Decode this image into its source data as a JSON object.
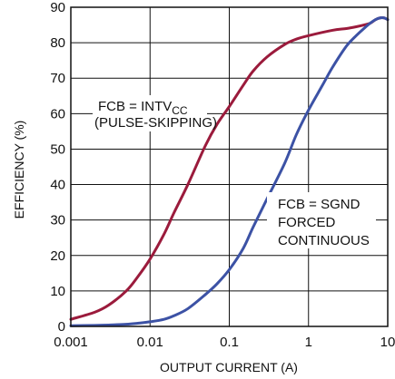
{
  "chart_data": {
    "type": "line",
    "xscale": "log",
    "xlim": [
      0.001,
      10
    ],
    "ylim": [
      0,
      90
    ],
    "xticks": [
      0.001,
      0.01,
      0.1,
      1,
      10
    ],
    "xtick_labels": [
      "0.001",
      "0.01",
      "0.1",
      "1",
      "10"
    ],
    "yticks": [
      0,
      10,
      20,
      30,
      40,
      50,
      60,
      70,
      80,
      90
    ],
    "ytick_labels": [
      "0",
      "10",
      "20",
      "30",
      "40",
      "50",
      "60",
      "70",
      "80",
      "90"
    ],
    "xlabel": "OUTPUT CURRENT (A)",
    "ylabel": "EFFICIENCY (%)",
    "grid": true,
    "series": [
      {
        "name": "FCB = INTVCC (PULSE-SKIPPING)",
        "color": "#9b1b3c",
        "x": [
          0.001,
          0.002,
          0.003,
          0.005,
          0.007,
          0.01,
          0.015,
          0.02,
          0.03,
          0.05,
          0.07,
          0.1,
          0.15,
          0.2,
          0.3,
          0.5,
          0.7,
          1,
          2,
          3,
          4,
          5,
          6,
          7,
          8,
          9,
          10
        ],
        "y": [
          2,
          4,
          6,
          10,
          14,
          19,
          26,
          32,
          40,
          51,
          57,
          62,
          68,
          72,
          76,
          79.5,
          81,
          82,
          83.5,
          84,
          84.5,
          85,
          85.5,
          86.5,
          87,
          87,
          86.5
        ]
      },
      {
        "name": "FCB = SGND FORCED CONTINUOUS",
        "color": "#3c52a5",
        "x": [
          0.001,
          0.002,
          0.003,
          0.005,
          0.007,
          0.01,
          0.015,
          0.02,
          0.03,
          0.05,
          0.07,
          0.1,
          0.15,
          0.2,
          0.3,
          0.5,
          0.7,
          1,
          1.5,
          2,
          3,
          4,
          5,
          6,
          7,
          8,
          9,
          10
        ],
        "y": [
          0.2,
          0.3,
          0.4,
          0.6,
          0.9,
          1.3,
          2,
          3,
          5,
          9,
          12,
          16,
          22,
          28,
          36,
          46,
          54,
          61,
          68,
          73,
          79,
          82,
          84,
          85.5,
          86.5,
          87,
          87,
          86.5
        ]
      }
    ],
    "annotations": [
      {
        "text_main": "FCB = INTV",
        "text_sub": "CC",
        "text_line2": "(PULSE-SKIPPING)"
      },
      {
        "line1": "FCB = SGND",
        "line2": "FORCED",
        "line3": "CONTINUOUS"
      }
    ]
  }
}
